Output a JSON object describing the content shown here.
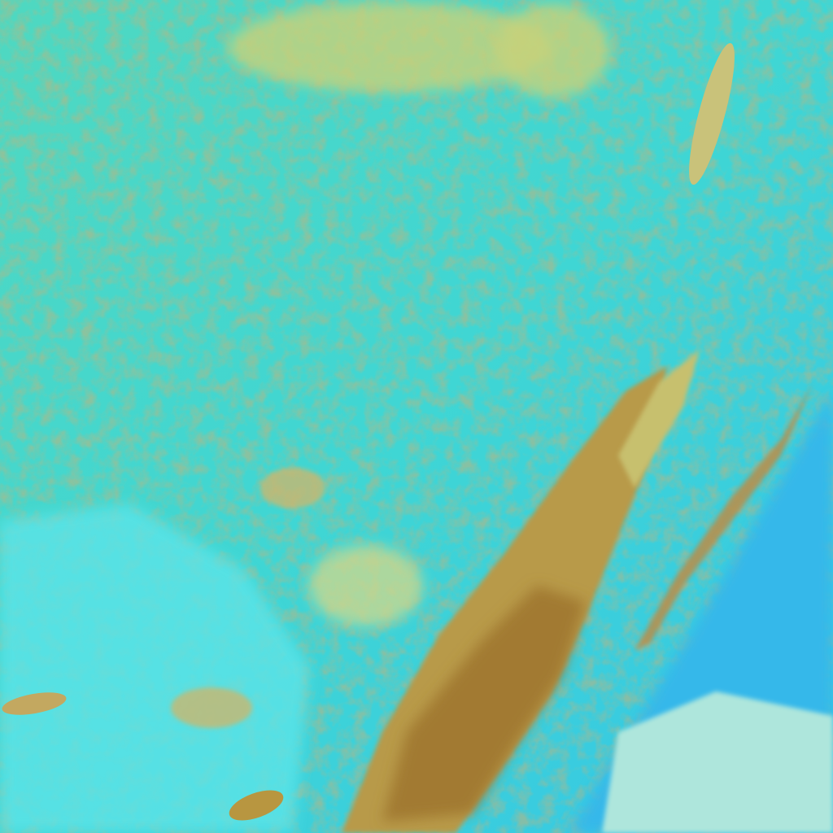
{
  "image": {
    "kind": "false-color satellite imagery",
    "colors": {
      "cloud_cyan": "#3fd6d0",
      "bright_cyan": "#5fe8e0",
      "sky_blue": "#38c8e6",
      "land_tan": "#c9c27a",
      "land_brown": "#a9823a",
      "dark_land": "#8a6a28",
      "pale_green": "#bfe39a",
      "snow_white": "#d8f4f0"
    }
  }
}
